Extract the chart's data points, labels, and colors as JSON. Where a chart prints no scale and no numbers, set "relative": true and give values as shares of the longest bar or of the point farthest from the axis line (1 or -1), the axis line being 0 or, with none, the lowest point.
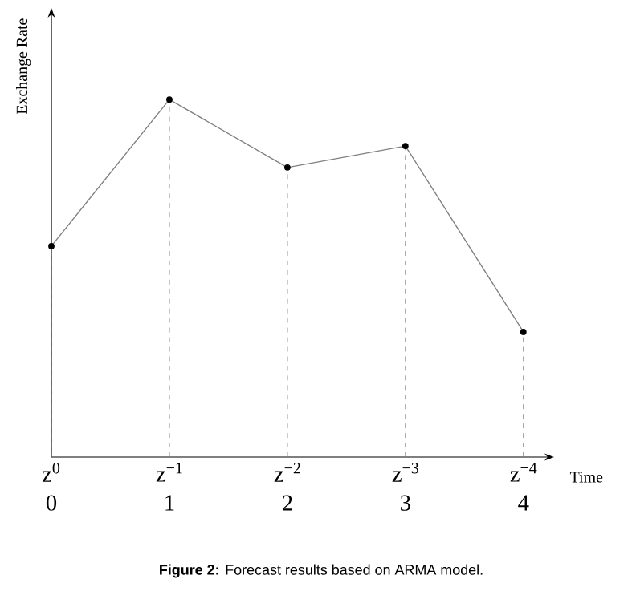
{
  "chart_data": {
    "type": "line",
    "xlabel": "Time",
    "ylabel": "Exchange Rate",
    "categories": [
      "z$^{0}$ 0",
      "z$^{−1}$ 1",
      "z$^{−2}$ 2",
      "z$^{−3}$ 3",
      "z$^{−4}$ 4"
    ],
    "relative": true,
    "series": [
      {
        "color": "#808080",
        "values": [
          0.59,
          1,
          0.81,
          0.87,
          0.35
        ]
      }
    ],
    "marker": "circle",
    "line_style": "solid",
    "grid": "x",
    "annotations": [
      "**Figure 2:** Forecast results based on ARMA model."
    ]
  }
}
